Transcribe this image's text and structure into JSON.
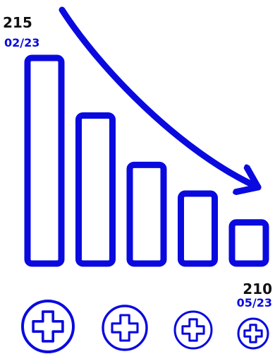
{
  "colors": {
    "accent": "#0a0adf",
    "label": "#111111",
    "background": "#ffffff"
  },
  "chart_data": {
    "type": "bar",
    "bar_count": 5,
    "trend": "down",
    "start": {
      "value": "215",
      "date": "02/23"
    },
    "end": {
      "value": "210",
      "date": "05/23"
    },
    "relative_heights": [
      1.0,
      0.72,
      0.48,
      0.34,
      0.2
    ],
    "icons": [
      "medical-cross-icon",
      "medical-cross-icon",
      "medical-cross-icon",
      "medical-cross-icon"
    ]
  }
}
